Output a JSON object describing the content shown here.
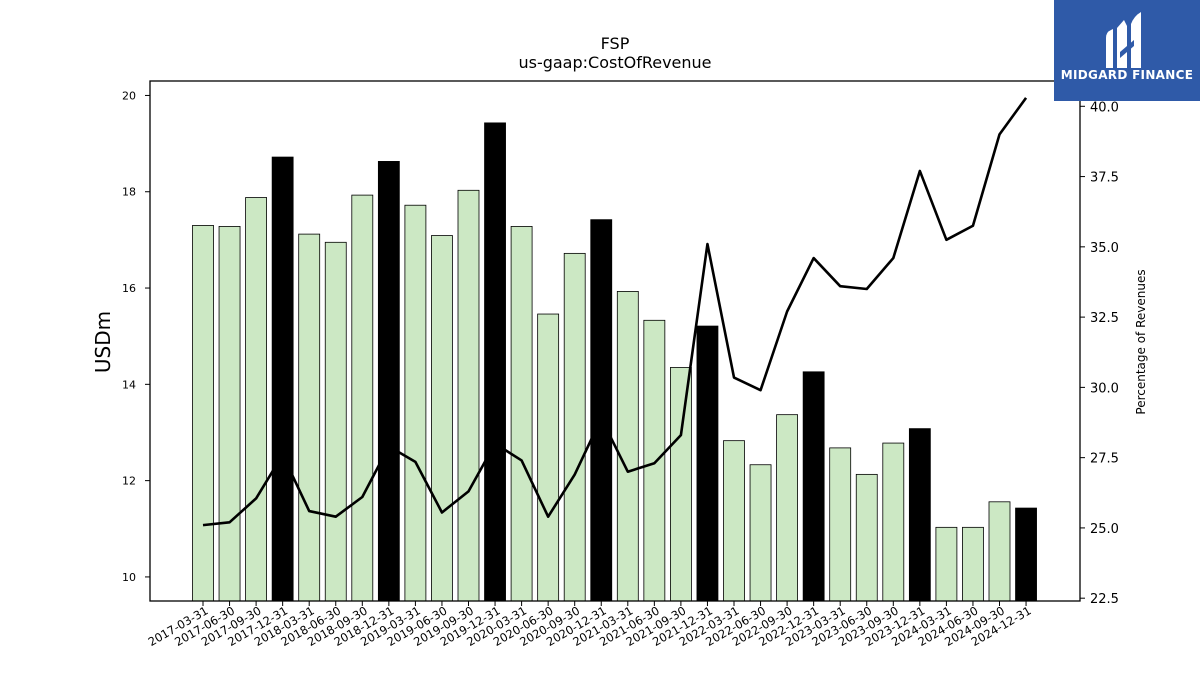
{
  "logo": {
    "text": "MIDGARD FINANCE",
    "icon": "midgard-finance-logo",
    "background": "#2f5aa8"
  },
  "chart_data": {
    "type": "bar",
    "title": "FSP",
    "subtitle": "us-gaap:CostOfRevenue",
    "ylabel": "USDm",
    "y2label": "Percentage of Revenues",
    "ylim": [
      9.5,
      20.3
    ],
    "y2lim": [
      22.4,
      40.9
    ],
    "yticks": [
      "10",
      "12",
      "14",
      "16",
      "18",
      "20"
    ],
    "y2ticks": [
      "22.5",
      "25.0",
      "27.5",
      "30.0",
      "32.5",
      "35.0",
      "37.5",
      "40.0"
    ],
    "grid": false,
    "categories": [
      "2017-03-31",
      "2017-06-30",
      "2017-09-30",
      "2017-12-31",
      "2018-03-31",
      "2018-06-30",
      "2018-09-30",
      "2018-12-31",
      "2019-03-31",
      "2019-06-30",
      "2019-09-30",
      "2019-12-31",
      "2020-03-31",
      "2020-06-30",
      "2020-09-30",
      "2020-12-31",
      "2021-03-31",
      "2021-06-30",
      "2021-09-30",
      "2021-12-31",
      "2022-03-31",
      "2022-06-30",
      "2022-09-30",
      "2022-12-31",
      "2023-03-31",
      "2023-06-30",
      "2023-09-30",
      "2023-12-31",
      "2024-03-31",
      "2024-06-30",
      "2024-09-30",
      "2024-12-31"
    ],
    "series": [
      {
        "type": "bar",
        "axis": "left",
        "values": [
          17.3,
          17.28,
          17.88,
          18.72,
          17.12,
          16.95,
          17.93,
          18.63,
          17.72,
          17.09,
          18.03,
          19.43,
          17.28,
          15.46,
          16.72,
          17.42,
          15.93,
          15.33,
          14.35,
          15.21,
          12.83,
          12.33,
          13.37,
          14.26,
          12.68,
          12.13,
          12.78,
          13.08,
          11.03,
          11.03,
          11.56,
          11.43
        ],
        "color": "#cce8c4",
        "highlight_color": "#000000",
        "highlight": [
          false,
          false,
          false,
          true,
          false,
          false,
          false,
          true,
          false,
          false,
          false,
          true,
          false,
          false,
          false,
          true,
          false,
          false,
          false,
          true,
          false,
          false,
          false,
          true,
          false,
          false,
          false,
          true,
          false,
          false,
          false,
          true
        ]
      },
      {
        "type": "line",
        "axis": "right",
        "values": [
          25.1,
          25.2,
          26.05,
          27.6,
          25.6,
          25.4,
          26.1,
          27.9,
          27.35,
          25.55,
          26.3,
          28.0,
          27.4,
          25.4,
          26.9,
          28.9,
          27.0,
          27.3,
          28.3,
          35.1,
          30.35,
          29.9,
          32.7,
          34.6,
          33.6,
          33.5,
          34.6,
          37.7,
          35.25,
          35.75,
          39.0,
          40.3
        ],
        "color": "#000000"
      }
    ]
  }
}
